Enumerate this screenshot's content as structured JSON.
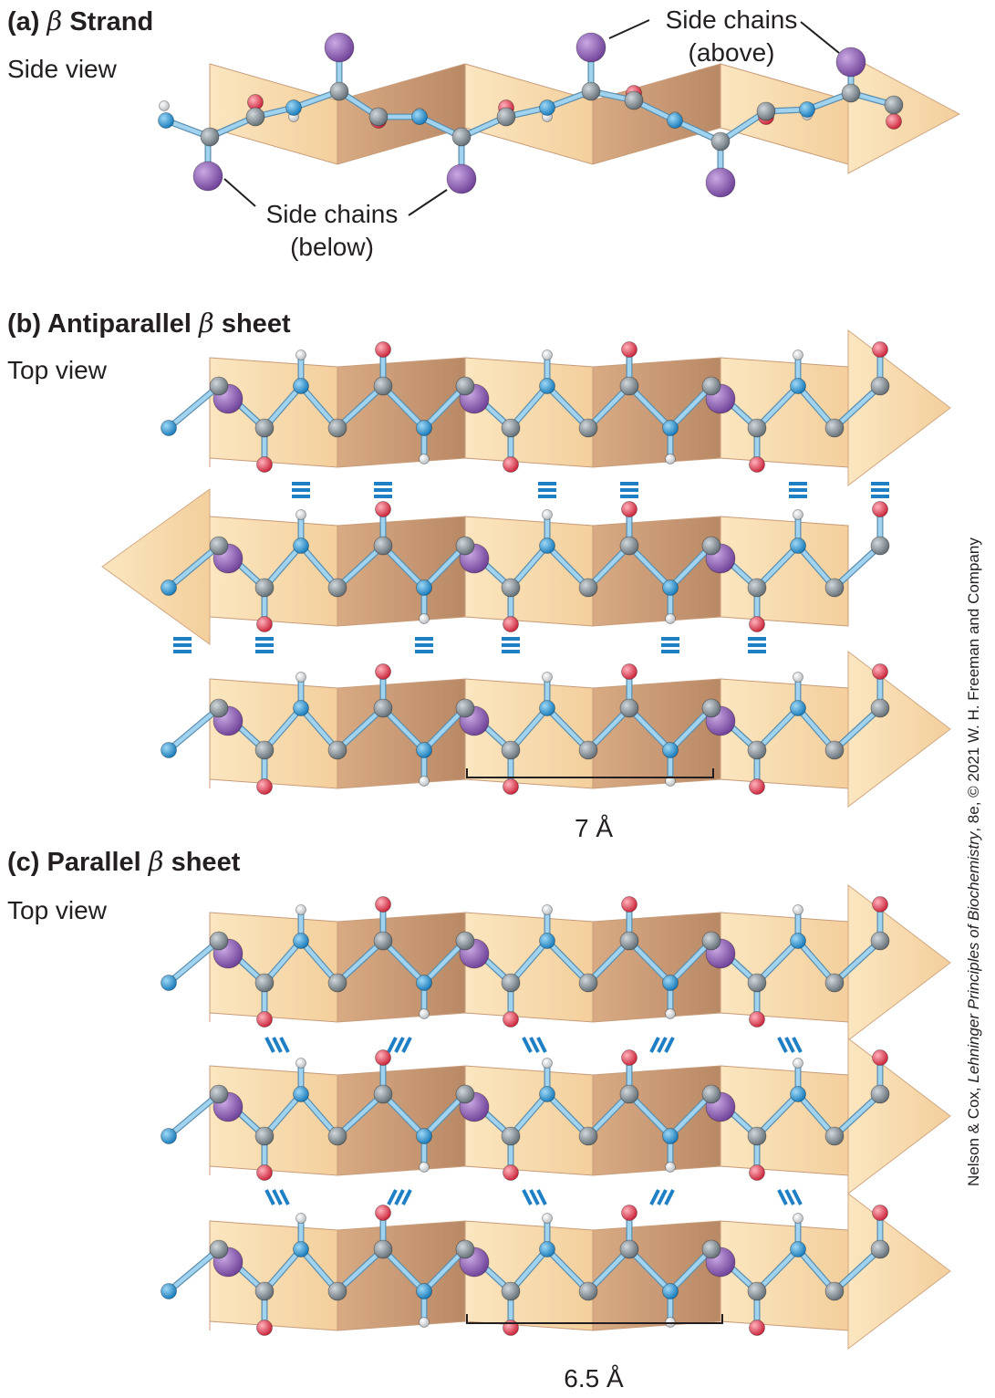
{
  "panel_a": {
    "letter": "(a)",
    "greek": "β",
    "title": "Strand",
    "view": "Side view",
    "callout_above": [
      "Side chains",
      "(above)"
    ],
    "callout_below": [
      "Side chains",
      "(below)"
    ]
  },
  "panel_b": {
    "letter": "(b)",
    "title_pre": "Antiparallel",
    "greek": "β",
    "title_post": "sheet",
    "view": "Top view",
    "measure": "7 Å"
  },
  "panel_c": {
    "letter": "(c)",
    "title_pre": "Parallel",
    "greek": "β",
    "title_post": "sheet",
    "view": "Top view",
    "measure": "6.5 Å"
  },
  "credit": {
    "pre": "Nelson & Cox, ",
    "book": "Lehninger Principles of Biochemistry",
    "post": ", 8e, © 2021 W. H. Freeman and Company"
  },
  "colors": {
    "carbon": "#8a9399",
    "nitrogen": "#2a9ad8",
    "oxygen": "#e8384f",
    "hydrogen": "#ffffff",
    "side_chain": "#8a5fb0",
    "bond": "#8fc9ea",
    "sheet_dark": "#cfa07a",
    "sheet_light": "#f8dcae",
    "hbond": "#1f7fc4"
  }
}
